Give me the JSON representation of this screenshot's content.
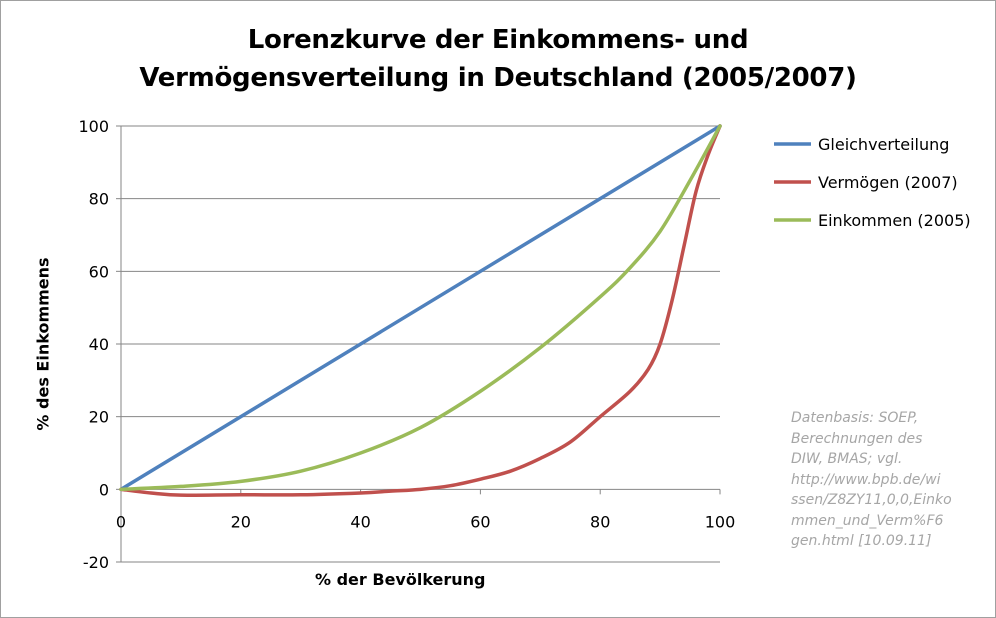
{
  "chart_data": {
    "type": "line",
    "title": [
      "Lorenzkurve der Einkommens- und",
      "Vermögensverteilung in Deutschland (2005/2007)"
    ],
    "xlabel": "% der Bevölkerung",
    "ylabel": "% des Einkommens",
    "xlim": [
      0,
      100
    ],
    "ylim": [
      -20,
      100
    ],
    "x_ticks": [
      0,
      20,
      40,
      60,
      80,
      100
    ],
    "y_ticks": [
      -20,
      0,
      20,
      40,
      60,
      80,
      100
    ],
    "grid": "horizontal",
    "legend_position": "right",
    "series": [
      {
        "name": "Gleichverteilung",
        "color": "#4f81bd",
        "x": [
          0,
          100
        ],
        "y": [
          0,
          100
        ]
      },
      {
        "name": "Vermögen (2007)",
        "color": "#c0504d",
        "x": [
          0,
          5,
          10,
          20,
          30,
          40,
          45,
          50,
          55,
          60,
          65,
          70,
          75,
          80,
          85,
          88,
          90,
          92,
          94,
          96,
          98,
          100
        ],
        "y": [
          0,
          -1,
          -1.6,
          -1.5,
          -1.5,
          -1,
          -0.5,
          0,
          1,
          2.8,
          5,
          8.5,
          13,
          20,
          27,
          33,
          40,
          52,
          67,
          82,
          92,
          100
        ]
      },
      {
        "name": "Einkommen (2005)",
        "color": "#9bbb59",
        "x": [
          0,
          10,
          20,
          30,
          40,
          50,
          60,
          70,
          80,
          85,
          90,
          95,
          100
        ],
        "y": [
          0,
          0.8,
          2.2,
          5,
          10,
          17,
          27,
          39,
          53,
          61,
          71,
          85,
          100
        ]
      }
    ],
    "annotation": [
      "Datenbasis: SOEP,",
      "Berechnungen des",
      "DIW, BMAS; vgl.",
      "http://www.bpb.de/wi",
      "ssen/Z8ZY11,0,0,Einko",
      "mmen_und_Verm%F6",
      "gen.html [10.09.11]"
    ]
  }
}
